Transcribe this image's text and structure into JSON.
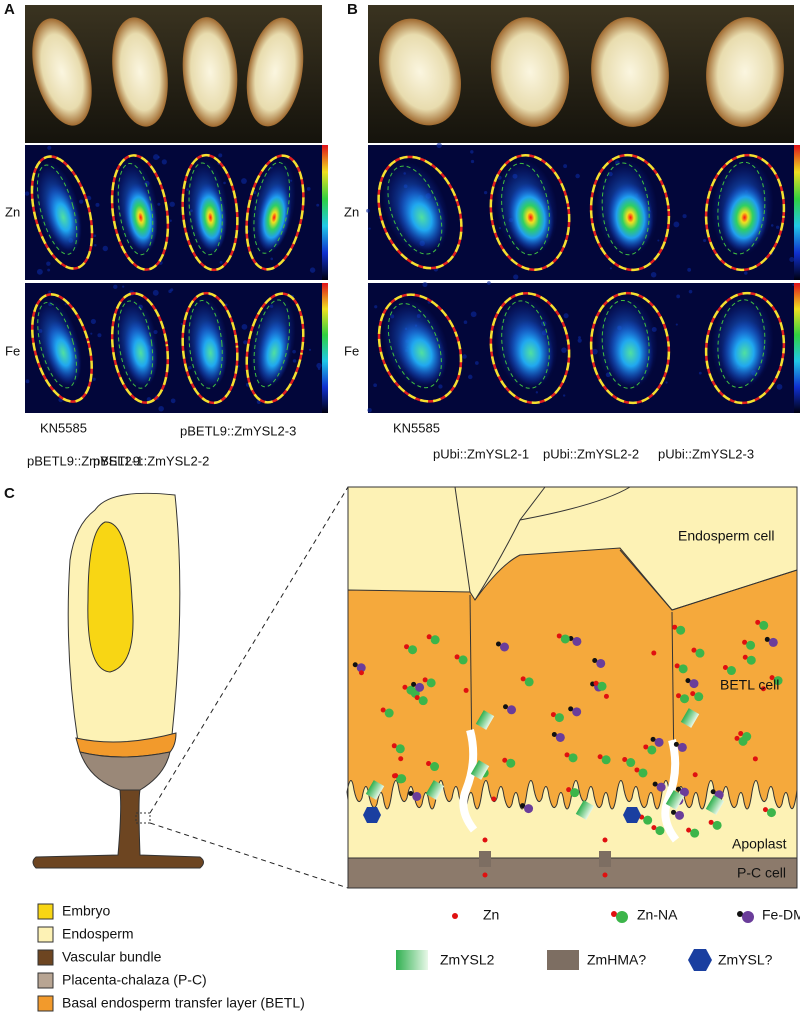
{
  "panel_a": {
    "label": "A",
    "row_labels": [
      "Zn",
      "Fe"
    ],
    "samples": [
      "KN5585",
      "pBETL9::ZmYSL2-1",
      "pBETL9::ZmYSL2-2",
      "pBETL9::ZmYSL2-3"
    ]
  },
  "panel_b": {
    "label": "B",
    "row_labels": [
      "Zn",
      "Fe"
    ],
    "samples": [
      "KN5585",
      "pUbi::ZmYSL2-1",
      "pUbi::ZmYSL2-2",
      "pUbi::ZmYSL2-3"
    ]
  },
  "panel_c": {
    "label": "C",
    "regions": [
      "Endosperm cell",
      "BETL cell",
      "Apoplast",
      "P-C cell"
    ],
    "tissue_legend": [
      "Embryo",
      "Endosperm",
      "Vascular bundle",
      "Placenta-chalaza (P-C)",
      "Basal endosperm transfer layer (BETL)"
    ],
    "molecule_legend": [
      "Zn",
      "Zn-NA",
      "Fe-DMA",
      "ZmYSL2",
      "ZmHMA?",
      "ZmYSL?"
    ]
  }
}
